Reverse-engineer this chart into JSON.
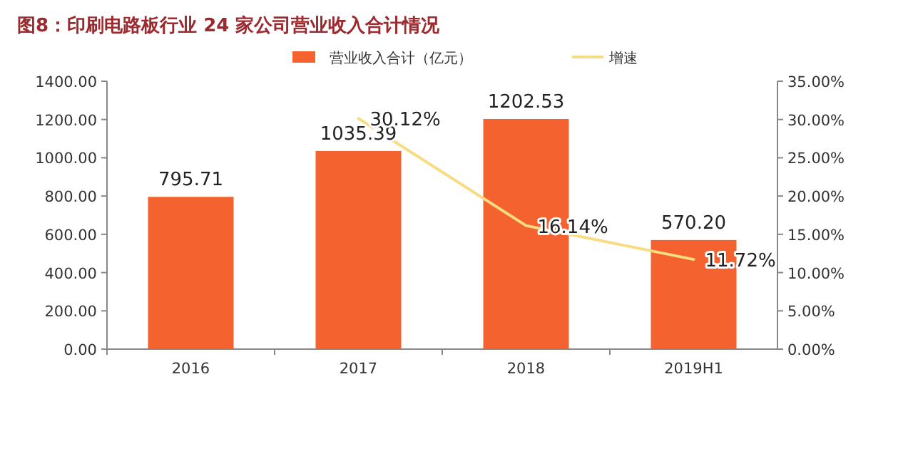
{
  "chart_data": {
    "type": "bar",
    "title": "图8：印刷电路板行业 24 家公司营业收入合计情况",
    "categories": [
      "2016",
      "2017",
      "2018",
      "2019H1"
    ],
    "series": [
      {
        "name": "营业收入合计（亿元）",
        "axis": "y",
        "color": "#f4622f",
        "values": [
          795.71,
          1035.39,
          1202.53,
          570.2
        ],
        "value_labels": [
          "795.71",
          "1035.39",
          "1202.53",
          "570.20"
        ]
      },
      {
        "name": "增速",
        "type": "line",
        "axis": "y2",
        "color": "#f8dc82",
        "values": [
          null,
          30.12,
          16.14,
          11.72
        ],
        "value_labels": [
          null,
          "30.12%",
          "16.14%",
          "11.72%"
        ]
      }
    ],
    "ylim": [
      0,
      1400
    ],
    "yticks": [
      {
        "value": 0,
        "label": "0.00"
      },
      {
        "value": 200,
        "label": "200.00"
      },
      {
        "value": 400,
        "label": "400.00"
      },
      {
        "value": 600,
        "label": "600.00"
      },
      {
        "value": 800,
        "label": "800.00"
      },
      {
        "value": 1000,
        "label": "1000.00"
      },
      {
        "value": 1200,
        "label": "1200.00"
      },
      {
        "value": 1400,
        "label": "1400.00"
      }
    ],
    "y2lim": [
      0,
      35
    ],
    "y2ticks": [
      {
        "value": 0,
        "label": "0.00%"
      },
      {
        "value": 5,
        "label": "5.00%"
      },
      {
        "value": 10,
        "label": "10.00%"
      },
      {
        "value": 15,
        "label": "15.00%"
      },
      {
        "value": 20,
        "label": "20.00%"
      },
      {
        "value": 25,
        "label": "25.00%"
      },
      {
        "value": 30,
        "label": "30.00%"
      },
      {
        "value": 35,
        "label": "35.00%"
      }
    ],
    "legend": "top",
    "marker": "none",
    "line_style": "solid",
    "grid": false
  }
}
